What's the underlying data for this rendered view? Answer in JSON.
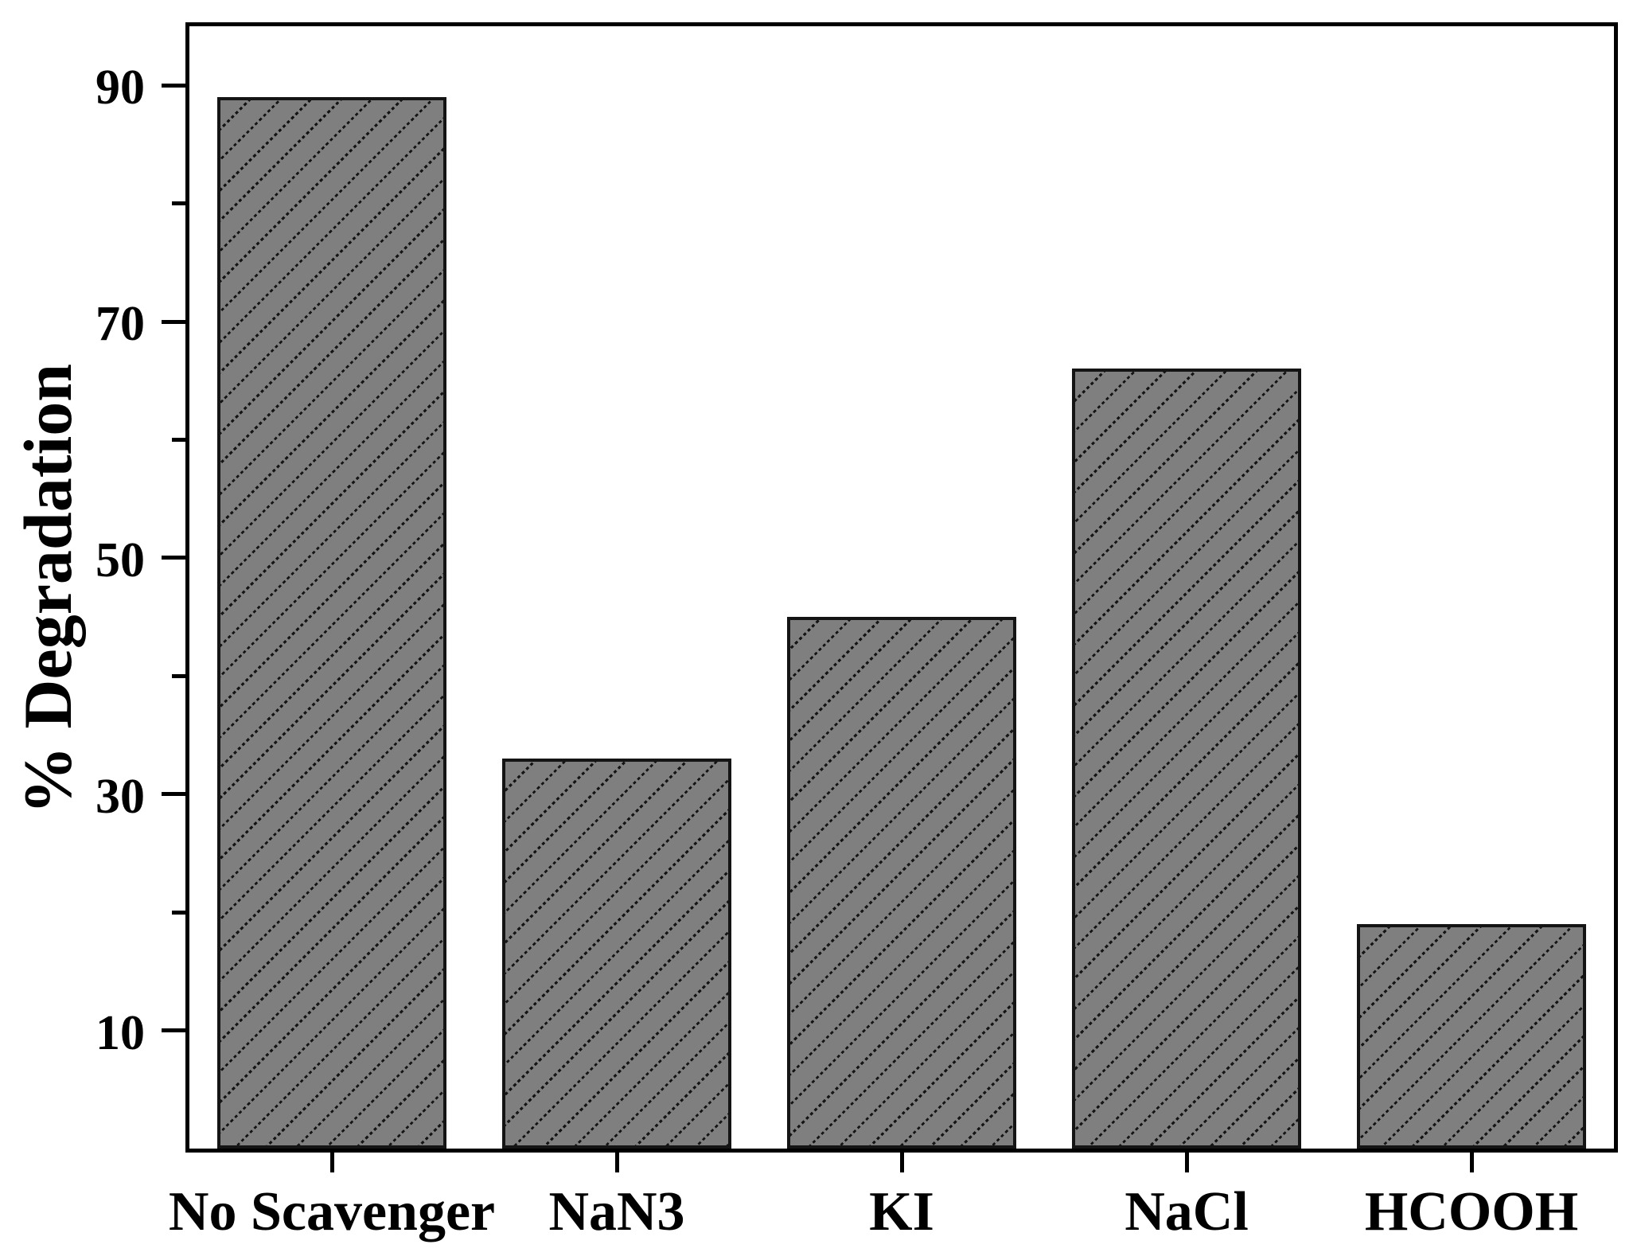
{
  "chart_data": {
    "type": "bar",
    "title": "",
    "xlabel": "",
    "ylabel": "% Degradation",
    "categories": [
      "No Scavenger",
      "NaN3",
      "KI",
      "NaCl",
      "HCOOH"
    ],
    "values": [
      89,
      33,
      45,
      66,
      19
    ],
    "ylim": [
      0,
      95
    ],
    "yticks_major": [
      10,
      30,
      50,
      70,
      90
    ],
    "yticks_minor": [
      20,
      40,
      60,
      80
    ],
    "grid": false,
    "legend": false,
    "bar_fill_color": "#7f7f7f",
    "bar_edge_color": "#141414",
    "hatch_style": "forward-slash dotted diagonal",
    "axis_color": "#000000",
    "background_color": "#ffffff"
  }
}
